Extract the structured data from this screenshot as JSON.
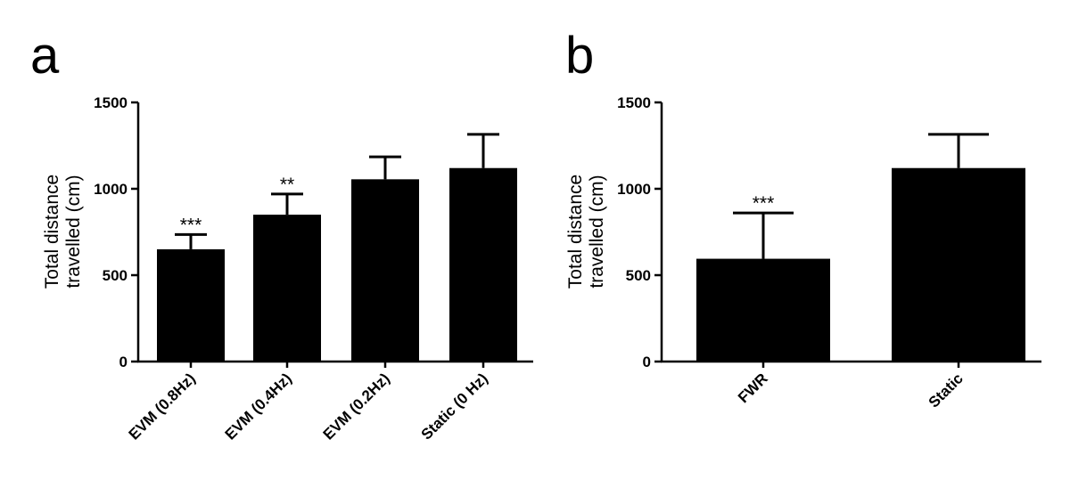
{
  "chart_data": [
    {
      "type": "bar",
      "panel": "a",
      "title": "",
      "ylabel": [
        "Total distance",
        "travelled (cm)"
      ],
      "xlabel": "",
      "ylim": [
        0,
        1500
      ],
      "yticks": [
        0,
        500,
        1000,
        1500
      ],
      "categories": [
        "EVM (0.8Hz)",
        "EVM (0.4Hz)",
        "EVM (0.2Hz)",
        "Static (0 Hz)"
      ],
      "values": [
        650,
        850,
        1055,
        1120
      ],
      "errors": [
        85,
        120,
        130,
        195
      ],
      "significance": [
        "***",
        "**",
        "",
        ""
      ],
      "bar_color": "#000000",
      "grid": false,
      "legend": "none"
    },
    {
      "type": "bar",
      "panel": "b",
      "title": "",
      "ylabel": [
        "Total distance",
        "travelled (cm)"
      ],
      "xlabel": "",
      "ylim": [
        0,
        1500
      ],
      "yticks": [
        0,
        500,
        1000,
        1500
      ],
      "categories": [
        "FWR",
        "Static"
      ],
      "values": [
        595,
        1120
      ],
      "errors": [
        265,
        195
      ],
      "significance": [
        "***",
        ""
      ],
      "bar_color": "#000000",
      "grid": false,
      "legend": "none"
    }
  ]
}
